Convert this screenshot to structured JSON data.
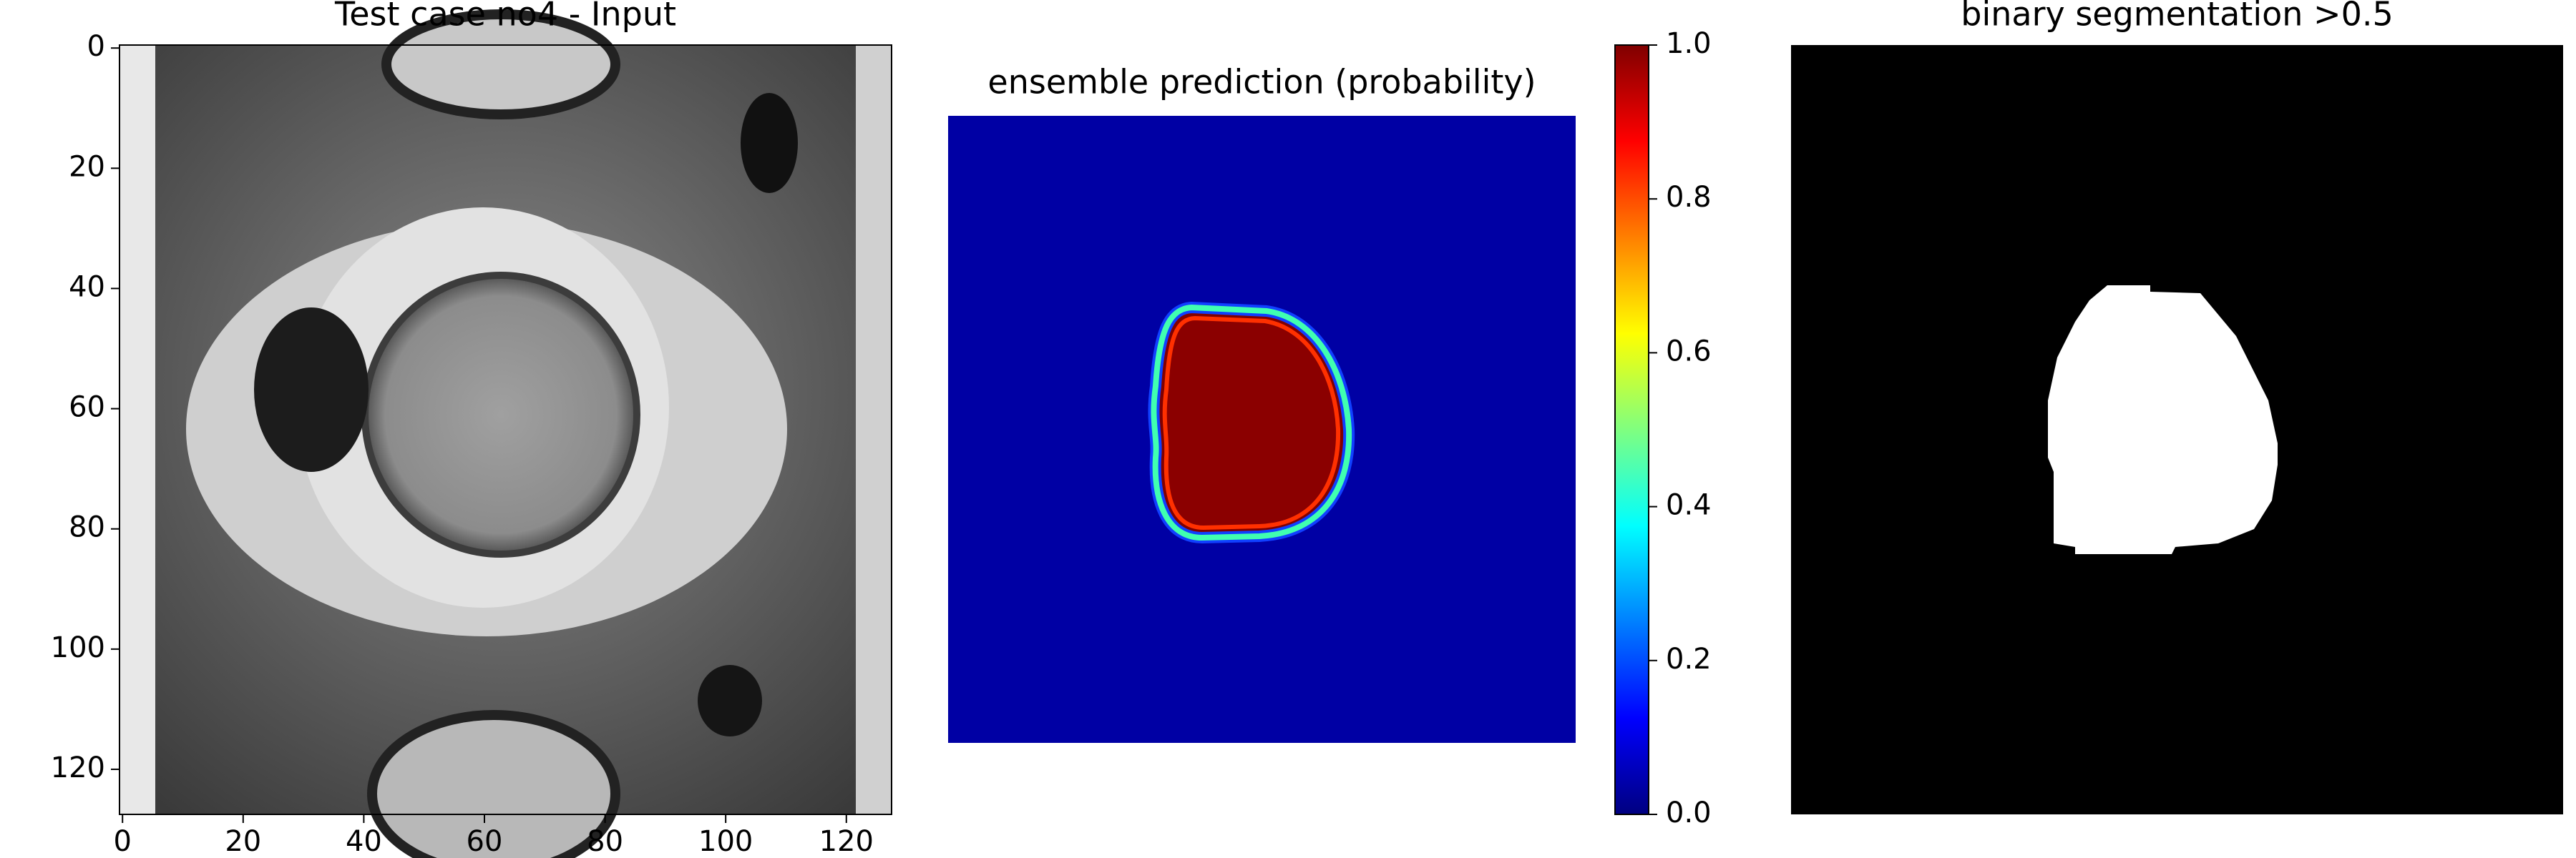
{
  "chart_data": [
    {
      "type": "image",
      "title": "Test case no4 - Input",
      "xlim": [
        -0.5,
        127.5
      ],
      "ylim": [
        127.5,
        -0.5
      ],
      "xticks": [
        0,
        20,
        40,
        60,
        80,
        100,
        120
      ],
      "yticks": [
        0,
        20,
        40,
        60,
        80,
        100,
        120
      ]
    },
    {
      "type": "heatmap",
      "title": "ensemble prediction (probability)",
      "colormap": "jet",
      "colorbar_lim": [
        0,
        1
      ],
      "colorbar_ticks": [
        {
          "value": 0,
          "label": "0.0"
        },
        {
          "value": 0.2,
          "label": "0.2"
        },
        {
          "value": 0.4,
          "label": "0.4"
        },
        {
          "value": 0.6,
          "label": "0.6"
        },
        {
          "value": 0.8,
          "label": "0.8"
        },
        {
          "value": 1,
          "label": "1.0"
        }
      ]
    },
    {
      "type": "mask",
      "title": "binary segmentation >0.5"
    }
  ]
}
